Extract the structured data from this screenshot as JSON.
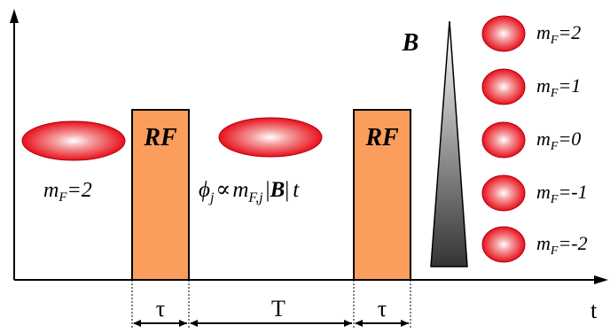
{
  "axis": {
    "t_label": "t"
  },
  "left_atom": {
    "label_m": "m",
    "label_sub": "F",
    "label_val": "=2"
  },
  "pulses": {
    "rf_label": "RF",
    "fill_color": "#fb9d5c"
  },
  "phase_formula": {
    "phi": "ϕ",
    "phi_sub": "j",
    "propto": "∝",
    "m": "m",
    "m_sub": "F,j",
    "bar_open": "|",
    "B": "B",
    "bar_close": "|",
    "t": "t"
  },
  "durations": {
    "tau": "τ",
    "T": "T"
  },
  "field": {
    "label": "B"
  },
  "states": [
    {
      "m": "m",
      "sub": "F",
      "val": "=2"
    },
    {
      "m": "m",
      "sub": "F",
      "val": "=1"
    },
    {
      "m": "m",
      "sub": "F",
      "val": "=0"
    },
    {
      "m": "m",
      "sub": "F",
      "val": "=-1"
    },
    {
      "m": "m",
      "sub": "F",
      "val": "=-2"
    }
  ],
  "colors": {
    "atom": "#e8101c",
    "atom_highlight": "#ffffff",
    "gradient_dark": "#333333"
  }
}
